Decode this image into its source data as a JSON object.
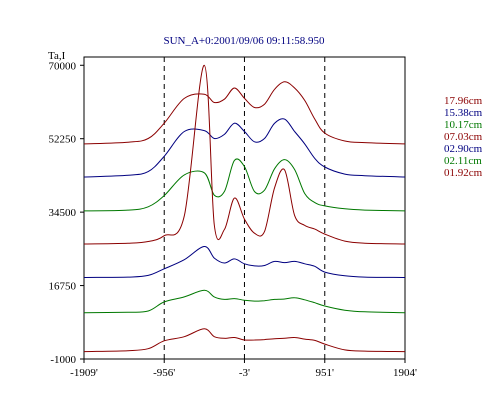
{
  "colors": {
    "red": "#8b0000",
    "blue": "#000080",
    "green": "#007800"
  },
  "chart_data": {
    "type": "line",
    "title": "SUN_A+0:2001/09/06 09:11:58.950",
    "ylabel": "Ta,I",
    "xlabel": "",
    "x_ticks": [
      "-1909'",
      "-956'",
      "-3'",
      "951'",
      "1904'"
    ],
    "x_tick_values": [
      -1909,
      -956,
      -3,
      951,
      1904
    ],
    "y_ticks": [
      "-1000",
      "16750",
      "34500",
      "52250",
      "70000"
    ],
    "y_tick_values": [
      -1000,
      16750,
      34500,
      52250,
      70000
    ],
    "xlim": [
      -1909,
      1904
    ],
    "ylim": [
      -1000,
      72000
    ],
    "dashed_vlines": [
      -956,
      -3,
      951
    ],
    "grid": false,
    "legend_position": "right",
    "x": [
      -1909,
      -1385,
      -1146,
      -956,
      -718,
      -480,
      -361,
      -241,
      -122,
      -3,
      116,
      235,
      355,
      474,
      593,
      713,
      832,
      951,
      1189,
      1427,
      1904
    ],
    "series": [
      {
        "name": "17.96cm",
        "color": "#8b0000",
        "values": [
          51000,
          51400,
          52300,
          56000,
          62000,
          63000,
          61000,
          61800,
          64500,
          62000,
          59800,
          60600,
          64200,
          66000,
          64500,
          61500,
          57000,
          53600,
          51700,
          51300,
          51000
        ]
      },
      {
        "name": "15.38cm",
        "color": "#000080",
        "values": [
          43000,
          43400,
          44300,
          48000,
          54000,
          54200,
          52300,
          53300,
          56000,
          54000,
          51500,
          52300,
          56000,
          57000,
          54000,
          51000,
          47500,
          45400,
          43700,
          43300,
          43000
        ]
      },
      {
        "name": "10.17cm",
        "color": "#007800",
        "values": [
          34800,
          35000,
          35800,
          38500,
          43500,
          44000,
          38600,
          39500,
          47000,
          45500,
          39500,
          39800,
          45000,
          47200,
          44800,
          39000,
          36800,
          36000,
          35300,
          35000,
          34800
        ]
      },
      {
        "name": "07.03cm",
        "color": "#8b0000",
        "values": [
          26800,
          27000,
          27400,
          28800,
          33600,
          70000,
          31400,
          30300,
          37900,
          32800,
          29400,
          29800,
          40400,
          44700,
          33700,
          31300,
          30400,
          29200,
          27500,
          27000,
          26800
        ]
      },
      {
        "name": "02.90cm",
        "color": "#000080",
        "values": [
          18700,
          18800,
          19200,
          20800,
          23000,
          26200,
          23400,
          22200,
          23200,
          22000,
          21500,
          21600,
          22600,
          22300,
          22600,
          22000,
          21400,
          20000,
          19100,
          18800,
          18700
        ]
      },
      {
        "name": "02.11cm",
        "color": "#007800",
        "values": [
          10200,
          10300,
          10600,
          12800,
          14000,
          15600,
          14000,
          13400,
          13600,
          13200,
          13000,
          13100,
          13400,
          13500,
          13800,
          13300,
          12600,
          11800,
          10800,
          10400,
          10200
        ]
      },
      {
        "name": "01.92cm",
        "color": "#8b0000",
        "values": [
          800,
          1000,
          1500,
          3400,
          4400,
          6300,
          4400,
          4000,
          4200,
          3600,
          3600,
          3700,
          3900,
          4000,
          4200,
          3800,
          3500,
          2600,
          1200,
          900,
          800
        ]
      }
    ]
  }
}
